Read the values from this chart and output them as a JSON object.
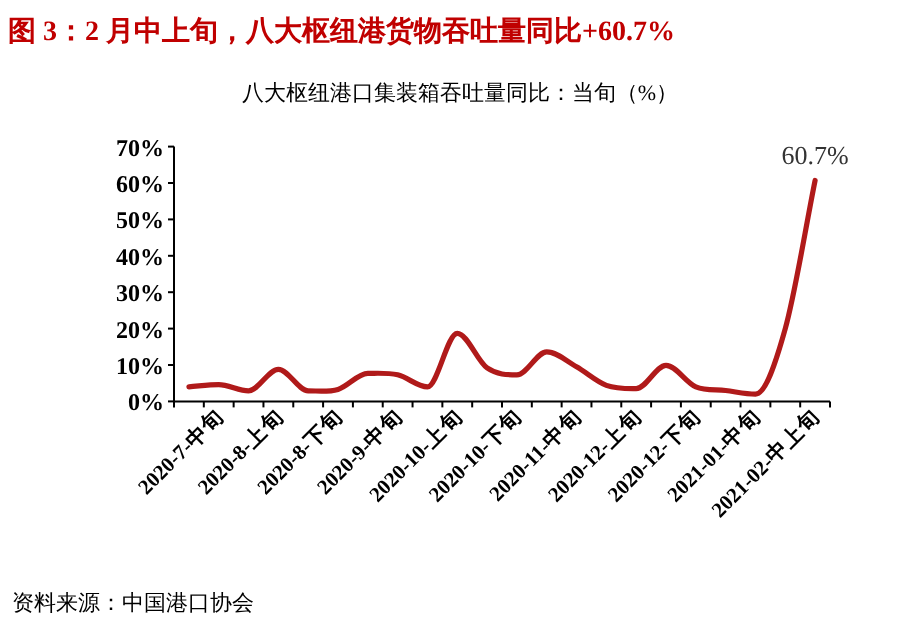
{
  "chart_data": {
    "type": "line",
    "title": "图 3：2 月中上旬，八大枢纽港货物吞吐量同比+60.7%",
    "subtitle": "八大枢纽港口集装箱吞吐量同比：当旬（%）",
    "categories": [
      null,
      "2020-7-中旬",
      null,
      "2020-8-上旬",
      null,
      "2020-8-下旬",
      null,
      "2020-9-中旬",
      null,
      "2020-10-上旬",
      null,
      "2020-10-下旬",
      null,
      "2020-11-中旬",
      null,
      "2020-12-上旬",
      null,
      "2020-12-下旬",
      null,
      "2021-01-中旬",
      null,
      "2021-02-中上旬"
    ],
    "series": [
      {
        "color": "#b01a1a",
        "values": [
          4.0,
          4.6,
          2.9,
          8.8,
          2.9,
          3.3,
          7.7,
          7.3,
          4.0,
          18.7,
          9.2,
          7.3,
          13.6,
          9.5,
          4.4,
          3.5,
          9.9,
          4.0,
          3.0,
          2.0,
          20.0,
          60.7
        ],
        "value_labels": [
          null,
          null,
          null,
          null,
          null,
          null,
          null,
          null,
          null,
          null,
          null,
          null,
          null,
          null,
          null,
          null,
          null,
          null,
          null,
          null,
          null,
          "60.7%"
        ]
      }
    ],
    "ylim": [
      0,
      70
    ],
    "yticks": [
      {
        "value": 0,
        "label": "0%"
      },
      {
        "value": 10,
        "label": "10%"
      },
      {
        "value": 20,
        "label": "20%"
      },
      {
        "value": 30,
        "label": "30%"
      },
      {
        "value": 40,
        "label": "40%"
      },
      {
        "value": 50,
        "label": "50%"
      },
      {
        "value": 60,
        "label": "60%"
      },
      {
        "value": 70,
        "label": "70%"
      }
    ],
    "grid": false,
    "marker": "none",
    "line_style": "solid",
    "annotations": [
      "资料来源：中国港口协会"
    ]
  }
}
